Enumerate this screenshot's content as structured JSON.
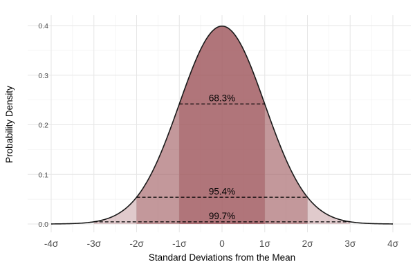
{
  "chart_data": {
    "type": "area",
    "title": "",
    "xlabel": "Standard Deviations from the Mean",
    "ylabel": "Probability Density",
    "xlim": [
      -4,
      4
    ],
    "ylim": [
      0,
      0.4
    ],
    "x_ticks": [
      -4,
      -3,
      -2,
      -1,
      0,
      1,
      2,
      3,
      4
    ],
    "x_tick_labels": [
      "-4σ",
      "-3σ",
      "-2σ",
      "-1σ",
      "0",
      "1σ",
      "2σ",
      "3σ",
      "4σ"
    ],
    "y_ticks": [
      0,
      0.1,
      0.2,
      0.3,
      0.4
    ],
    "y_tick_labels": [
      "0.0",
      "0.1",
      "0.2",
      "0.3",
      "0.4"
    ],
    "grid": true,
    "curve": {
      "name": "",
      "distribution": "standard normal",
      "mean": 0,
      "sd": 1
    },
    "regions": [
      {
        "label": "99.7%",
        "from": -3,
        "to": 3,
        "line_y": 0.0044
      },
      {
        "label": "95.4%",
        "from": -2,
        "to": 2,
        "line_y": 0.054
      },
      {
        "label": "68.3%",
        "from": -1,
        "to": 1,
        "line_y": 0.242
      }
    ],
    "colors": {
      "fill": "#a05a5f",
      "curve": "#1a1a1a",
      "dashed_line": "#000000"
    }
  }
}
